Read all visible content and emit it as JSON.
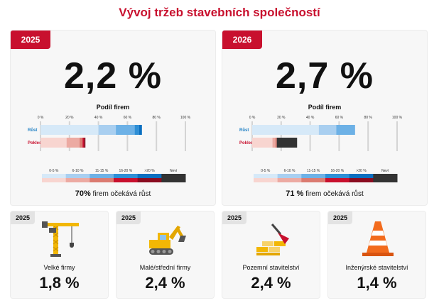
{
  "title": "Vývoj tržeb stavebních společností",
  "chart_data": [
    {
      "type": "bar",
      "year_tag": "2025",
      "headline": "2,2 %",
      "subtitle": "Podíl firem",
      "xticks": [
        "0 %",
        "20 %",
        "40 %",
        "60 %",
        "80 %",
        "100 %"
      ],
      "xlim": [
        0,
        100
      ],
      "categories": [
        "Růst",
        "Pokles"
      ],
      "bands": [
        "0-5 %",
        "6-10 %",
        "11-15 %",
        "16-20 %",
        ">20 %",
        "Neví"
      ],
      "series": [
        {
          "name": "0-5 %",
          "values": [
            40,
            18
          ]
        },
        {
          "name": "6-10 %",
          "values": [
            12,
            9
          ]
        },
        {
          "name": "11-15 %",
          "values": [
            13,
            2
          ]
        },
        {
          "name": "16-20 %",
          "values": [
            3,
            1
          ]
        },
        {
          "name": ">20 %",
          "values": [
            2,
            1
          ]
        },
        {
          "name": "Neví",
          "values": [
            0,
            0
          ]
        }
      ],
      "footer_value": "70%",
      "footer_text": "firem očekává růst"
    },
    {
      "type": "bar",
      "year_tag": "2026",
      "headline": "2,7 %",
      "subtitle": "Podíl firem",
      "xticks": [
        "0 %",
        "20 %",
        "40 %",
        "60 %",
        "80 %",
        "100 %"
      ],
      "xlim": [
        0,
        100
      ],
      "categories": [
        "Růst",
        "Pokles"
      ],
      "bands": [
        "0-5 %",
        "6-10 %",
        "11-15 %",
        "16-20 %",
        ">20 %",
        "Neví"
      ],
      "series": [
        {
          "name": "0-5 %",
          "values": [
            46,
            14
          ]
        },
        {
          "name": "6-10 %",
          "values": [
            12,
            2
          ]
        },
        {
          "name": "11-15 %",
          "values": [
            13,
            1
          ]
        },
        {
          "name": "16-20 %",
          "values": [
            0,
            0
          ]
        },
        {
          "name": ">20 %",
          "values": [
            0,
            0
          ]
        },
        {
          "name": "Neví",
          "values": [
            0,
            14
          ]
        }
      ],
      "footer_value": "71 %",
      "footer_text": "firem očekává růst"
    }
  ],
  "colors": {
    "accent": "#c8102e",
    "grow": [
      "#d6e9f8",
      "#a9cff0",
      "#6db1e6",
      "#2e8fd6",
      "#0a6fc0",
      "#333333"
    ],
    "decline": [
      "#f8d5d0",
      "#ecaaa2",
      "#db7b71",
      "#c8102e",
      "#8a0c20",
      "#333333"
    ]
  },
  "segments": [
    {
      "year": "2025",
      "icon": "crane-icon",
      "label": "Velké firmy",
      "value": "1,8 %"
    },
    {
      "year": "2025",
      "icon": "excavator-icon",
      "label": "Malé/střední firmy",
      "value": "2,4 %"
    },
    {
      "year": "2025",
      "icon": "bricks-trowel-icon",
      "label": "Pozemní stavitelství",
      "value": "2,4 %"
    },
    {
      "year": "2025",
      "icon": "traffic-cone-icon",
      "label": "Inženýrské stavitelství",
      "value": "1,4 %"
    }
  ]
}
